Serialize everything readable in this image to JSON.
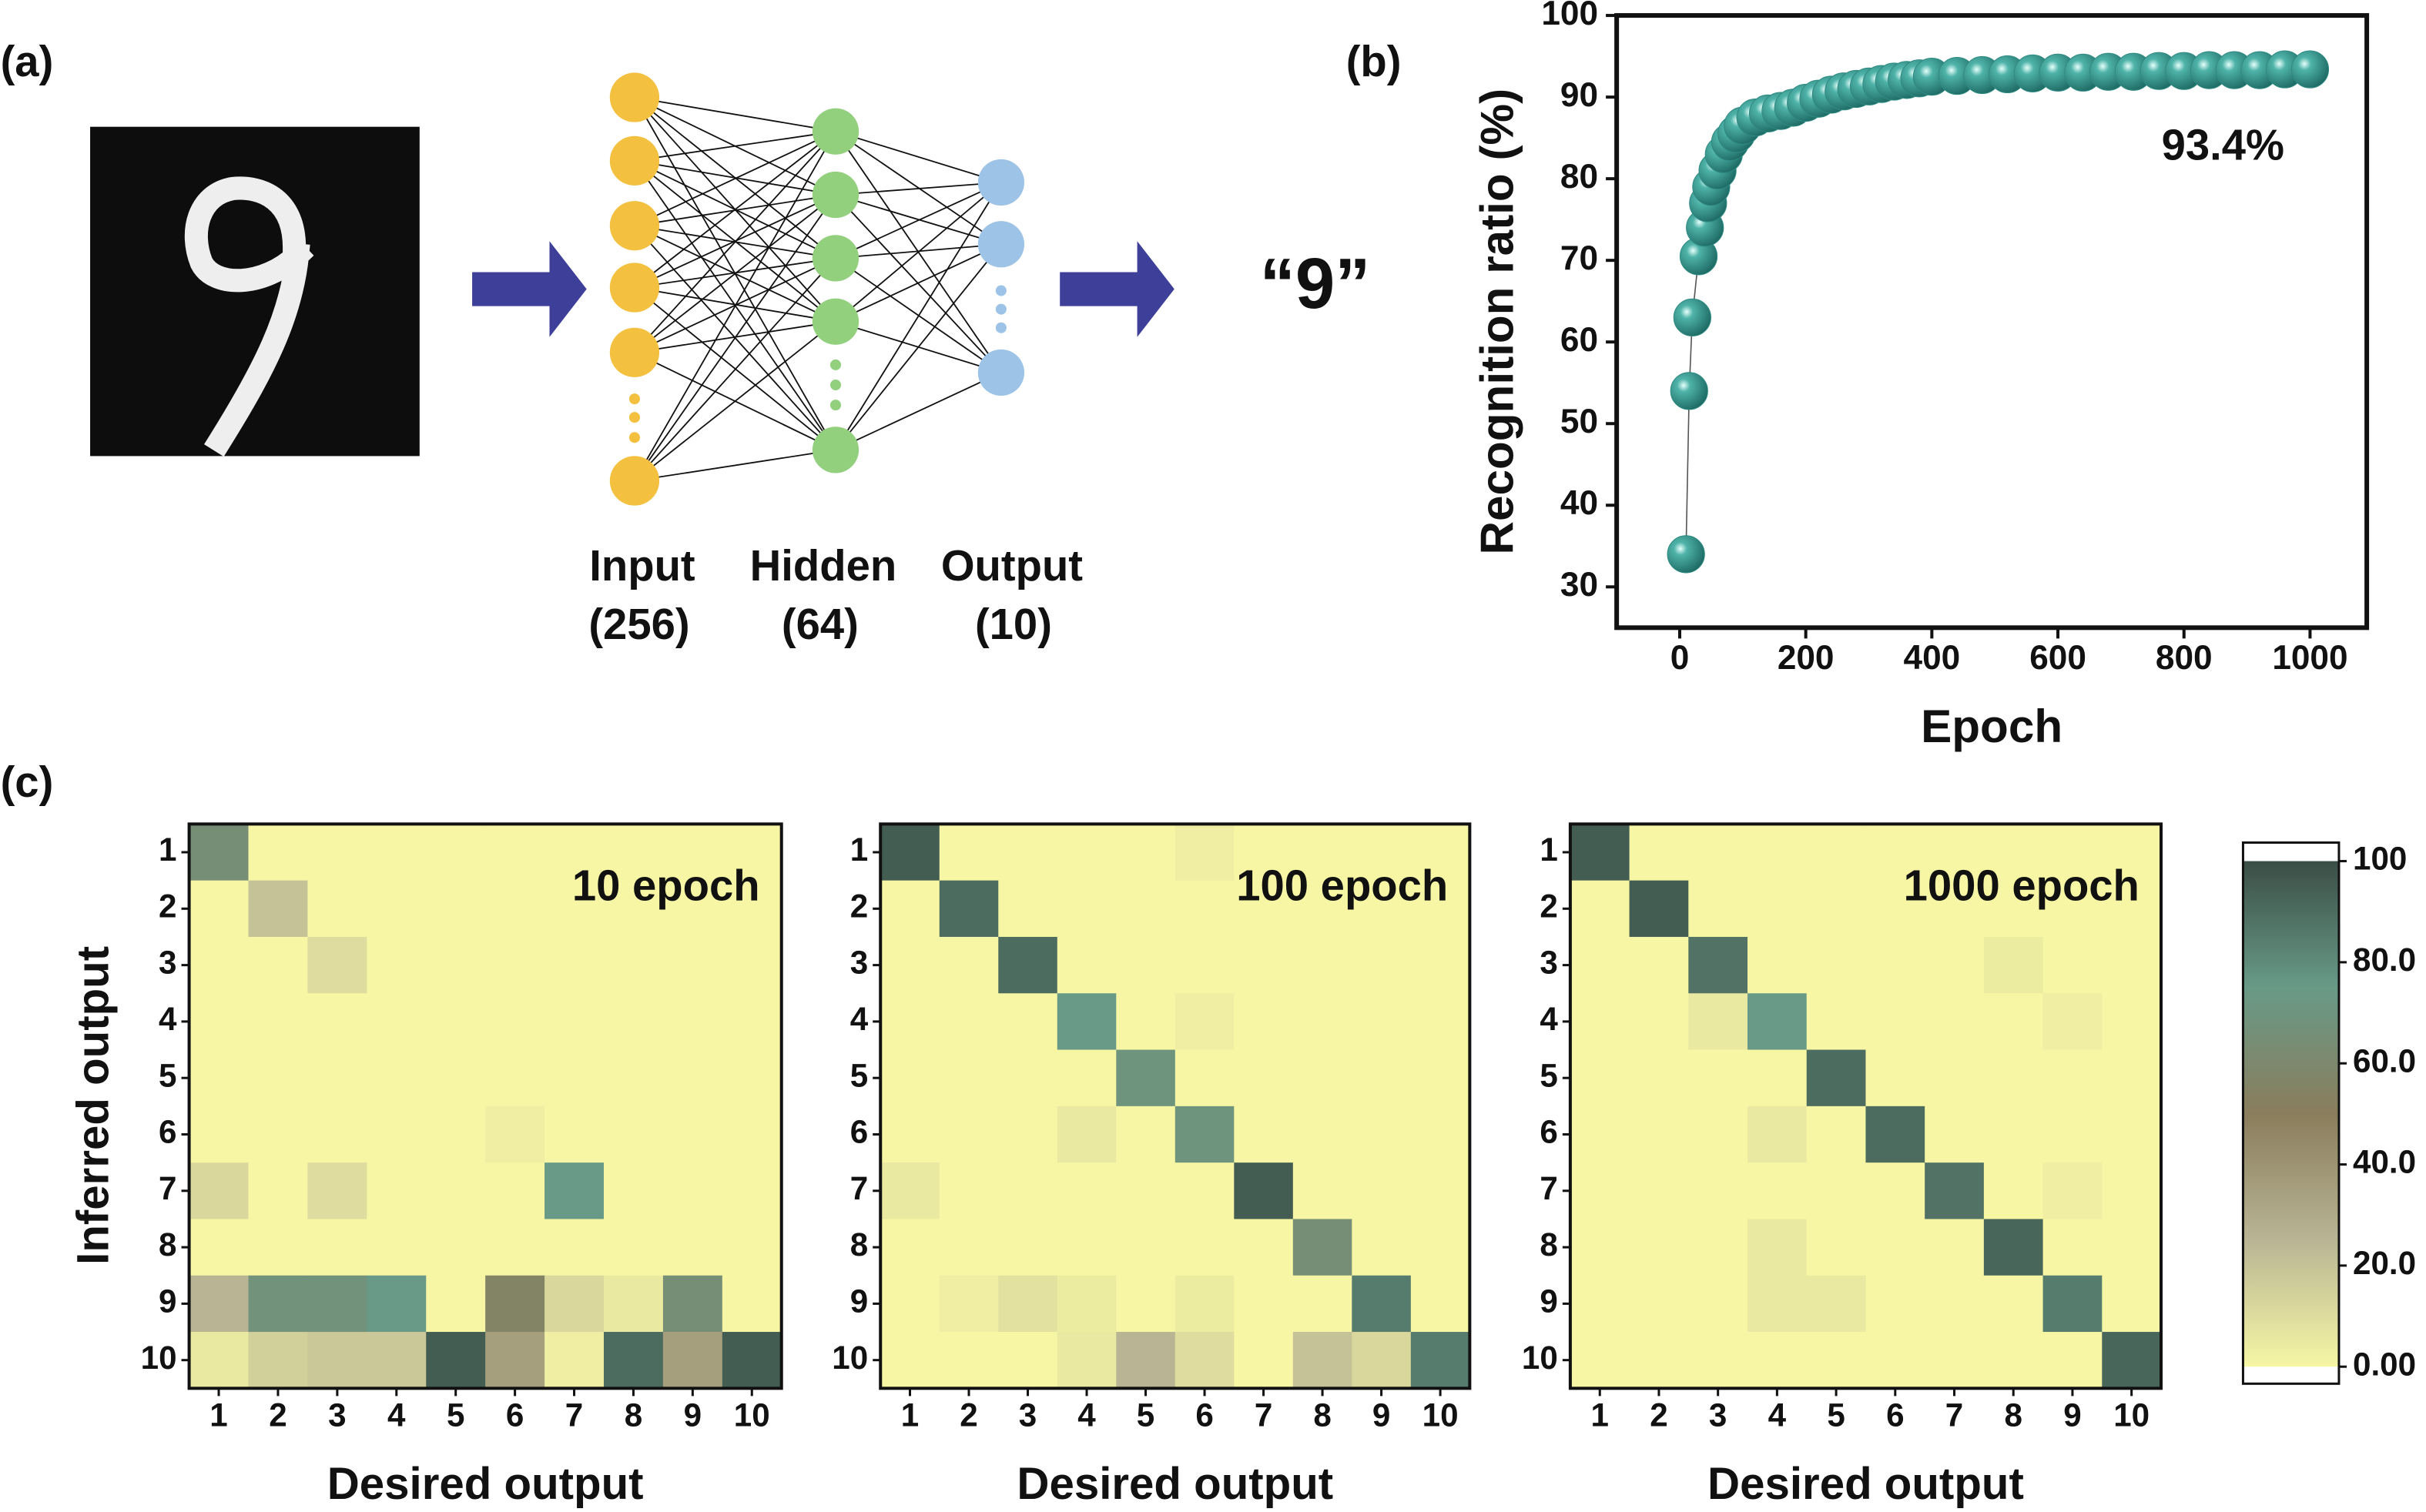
{
  "diagram": {
    "panel_labels": [
      "(a)",
      "(b)",
      "(c)"
    ],
    "layers": [
      {
        "name": "Input",
        "size": "(256)"
      },
      {
        "name": "Hidden",
        "size": "(64)"
      },
      {
        "name": "Output",
        "size": "(10)"
      }
    ],
    "prediction": "“9”"
  },
  "chart_data": [
    {
      "type": "scatter",
      "x_label": "Epoch",
      "y_label": "Recognition ratio (%)",
      "annotation": "93.4%",
      "color": "#2f8b84",
      "x": [
        10,
        15,
        20,
        30,
        40,
        45,
        50,
        60,
        70,
        80,
        90,
        100,
        120,
        140,
        160,
        180,
        200,
        220,
        240,
        260,
        280,
        300,
        320,
        340,
        360,
        380,
        400,
        440,
        480,
        520,
        560,
        600,
        640,
        680,
        720,
        760,
        800,
        840,
        880,
        920,
        960,
        1000
      ],
      "y": [
        34,
        54,
        63,
        70.5,
        74,
        77,
        79,
        81,
        83,
        84.5,
        85.5,
        86.5,
        87.5,
        88,
        88.3,
        88.7,
        89.3,
        89.8,
        90.3,
        90.7,
        91,
        91.3,
        91.6,
        91.9,
        92.1,
        92.3,
        92.5,
        92.6,
        92.7,
        92.8,
        92.9,
        93,
        93,
        93.1,
        93.1,
        93.2,
        93.2,
        93.3,
        93.3,
        93.3,
        93.4,
        93.4
      ],
      "xlim": [
        -100,
        1090
      ],
      "xticks": [
        0,
        200,
        400,
        600,
        800,
        1000
      ],
      "ylim": [
        25,
        100
      ],
      "yticks": [
        30,
        40,
        50,
        60,
        70,
        80,
        90,
        100
      ]
    },
    {
      "type": "heatmap",
      "title": "10 epoch",
      "x_label": "Desired output",
      "y_label": "Inferred output",
      "x_categories": [
        "1",
        "2",
        "3",
        "4",
        "5",
        "6",
        "7",
        "8",
        "9",
        "10"
      ],
      "y_categories": [
        "1",
        "2",
        "3",
        "4",
        "5",
        "6",
        "7",
        "8",
        "9",
        "10"
      ],
      "z": [
        [
          65,
          0,
          0,
          0,
          0,
          0,
          0,
          0,
          0,
          0
        ],
        [
          0,
          20,
          0,
          0,
          0,
          0,
          0,
          0,
          0,
          0
        ],
        [
          0,
          0,
          10,
          0,
          0,
          0,
          0,
          0,
          0,
          0
        ],
        [
          0,
          0,
          0,
          0,
          0,
          0,
          0,
          0,
          0,
          0
        ],
        [
          0,
          0,
          0,
          0,
          0,
          0,
          0,
          0,
          0,
          0
        ],
        [
          0,
          0,
          0,
          0,
          0,
          3,
          0,
          0,
          0,
          0
        ],
        [
          12,
          0,
          10,
          0,
          0,
          0,
          75,
          0,
          0,
          0
        ],
        [
          0,
          0,
          0,
          0,
          0,
          0,
          0,
          0,
          0,
          0
        ],
        [
          25,
          68,
          68,
          75,
          0,
          55,
          12,
          5,
          65,
          0
        ],
        [
          5,
          15,
          18,
          18,
          95,
          35,
          3,
          90,
          35,
          95
        ]
      ]
    },
    {
      "type": "heatmap",
      "title": "100 epoch",
      "x_label": "Desired output",
      "x_categories": [
        "1",
        "2",
        "3",
        "4",
        "5",
        "6",
        "7",
        "8",
        "9",
        "10"
      ],
      "y_categories": [
        "1",
        "2",
        "3",
        "4",
        "5",
        "6",
        "7",
        "8",
        "9",
        "10"
      ],
      "z": [
        [
          95,
          0,
          0,
          0,
          0,
          3,
          0,
          0,
          0,
          0
        ],
        [
          0,
          90,
          0,
          0,
          0,
          0,
          0,
          0,
          0,
          0
        ],
        [
          0,
          0,
          90,
          0,
          0,
          0,
          0,
          0,
          0,
          0
        ],
        [
          0,
          0,
          0,
          75,
          0,
          3,
          0,
          0,
          0,
          0
        ],
        [
          0,
          0,
          0,
          0,
          70,
          0,
          0,
          0,
          0,
          0
        ],
        [
          0,
          0,
          0,
          5,
          0,
          70,
          0,
          0,
          0,
          0
        ],
        [
          5,
          0,
          0,
          0,
          0,
          0,
          95,
          0,
          0,
          0
        ],
        [
          0,
          0,
          0,
          0,
          0,
          0,
          0,
          65,
          0,
          0
        ],
        [
          0,
          3,
          8,
          4,
          0,
          4,
          0,
          0,
          85,
          0
        ],
        [
          0,
          0,
          0,
          5,
          25,
          10,
          0,
          20,
          12,
          85
        ]
      ]
    },
    {
      "type": "heatmap",
      "title": "1000 epoch",
      "x_label": "Desired output",
      "x_categories": [
        "1",
        "2",
        "3",
        "4",
        "5",
        "6",
        "7",
        "8",
        "9",
        "10"
      ],
      "y_categories": [
        "1",
        "2",
        "3",
        "4",
        "5",
        "6",
        "7",
        "8",
        "9",
        "10"
      ],
      "z": [
        [
          95,
          0,
          0,
          0,
          0,
          0,
          0,
          0,
          0,
          0
        ],
        [
          0,
          95,
          0,
          0,
          0,
          0,
          0,
          0,
          0,
          0
        ],
        [
          0,
          0,
          88,
          0,
          0,
          0,
          0,
          4,
          0,
          0
        ],
        [
          0,
          0,
          5,
          75,
          0,
          0,
          0,
          0,
          3,
          0
        ],
        [
          0,
          0,
          0,
          0,
          90,
          0,
          0,
          0,
          0,
          0
        ],
        [
          0,
          0,
          0,
          5,
          0,
          90,
          0,
          0,
          0,
          0
        ],
        [
          0,
          0,
          0,
          0,
          0,
          0,
          88,
          0,
          3,
          0
        ],
        [
          0,
          0,
          0,
          5,
          0,
          0,
          0,
          92,
          0,
          0
        ],
        [
          0,
          0,
          0,
          5,
          5,
          0,
          0,
          0,
          85,
          0
        ],
        [
          0,
          0,
          0,
          0,
          0,
          0,
          0,
          0,
          0,
          92
        ]
      ]
    },
    {
      "type": "colorbar",
      "ylim": [
        0,
        100
      ],
      "yticks": [
        {
          "value": 0,
          "label": "0.00"
        },
        {
          "value": 20,
          "label": "20.0"
        },
        {
          "value": 40,
          "label": "40.0"
        },
        {
          "value": 60,
          "label": "60.0"
        },
        {
          "value": 80,
          "label": "80.0"
        },
        100
      ],
      "colorscale": [
        "#f6f6a4",
        "#b9b594",
        "#8a7d5c",
        "#689a87",
        "#3b4e46"
      ]
    }
  ]
}
